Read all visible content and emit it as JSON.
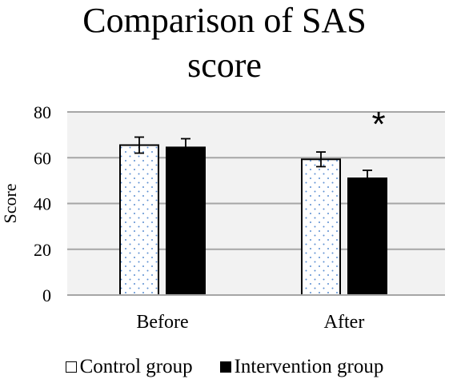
{
  "chart_data": {
    "type": "bar",
    "title": "Comparison of SAS score",
    "title_lines": [
      "Comparison of SAS",
      "score"
    ],
    "xlabel": "",
    "ylabel": "Score",
    "ylim": [
      0,
      80
    ],
    "yticks": [
      0,
      20,
      40,
      60,
      80
    ],
    "grid": true,
    "legend_position": "bottom",
    "categories": [
      "Before",
      "After"
    ],
    "series": [
      {
        "name": "Control group",
        "values": [
          65.5,
          59.3
        ],
        "errors": [
          3.5,
          3.2
        ],
        "pattern": "dotted",
        "color": "#ffffff",
        "dot_color": "#5b8ed1"
      },
      {
        "name": "Intervention group",
        "values": [
          64.5,
          51.0
        ],
        "errors": [
          3.8,
          3.5
        ],
        "pattern": "solid",
        "color": "#000000"
      }
    ],
    "annotations": [
      {
        "text": "*",
        "category": "After"
      }
    ]
  }
}
